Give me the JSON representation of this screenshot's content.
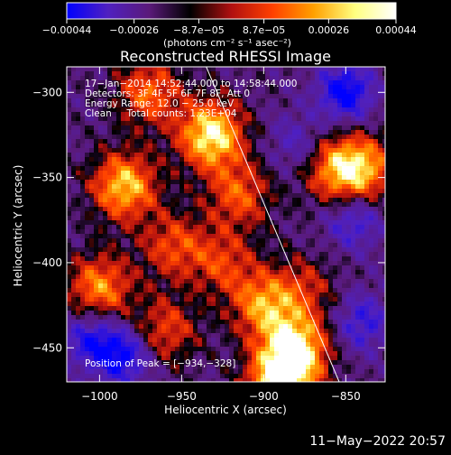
{
  "chart_data": {
    "type": "heatmap",
    "title": "Reconstructed RHESSI Image",
    "xlabel": "Heliocentric X (arcsec)",
    "ylabel": "Heliocentric Y (arcsec)",
    "xlim": [
      -1020,
      -826
    ],
    "ylim": [
      -470,
      -285
    ],
    "x_ticks": [
      -1000,
      -950,
      -900,
      -850
    ],
    "x_tick_labels": [
      "−1000",
      "−950",
      "−900",
      "−850"
    ],
    "y_ticks": [
      -300,
      -350,
      -400,
      -450
    ],
    "y_tick_labels": [
      "−300",
      "−350",
      "−400",
      "−450"
    ],
    "colorbar": {
      "range": [
        -0.00044,
        0.00044
      ],
      "ticks": [
        -0.00044,
        -0.00026,
        -8.7e-05,
        8.7e-05,
        0.00026,
        0.00044
      ],
      "tick_labels": [
        "−0.00044",
        "−0.00026",
        "−8.7e−05",
        "8.7e−05",
        "0.00026",
        "0.00044"
      ],
      "unit_text": "(photons cm⁻² s⁻¹ asec⁻²)",
      "colormap": [
        "#0000ff",
        "#5020c0",
        "#5a1a7a",
        "#000000",
        "#b01010",
        "#ff4000",
        "#ffa000",
        "#ffff80",
        "#ffffff"
      ]
    },
    "annotations": [
      "17−Jan−2014 14:52:44.000 to 14:58:44.000",
      "Detectors: 3F 4F 5F 6F 7F 8F, Att 0",
      "Energy Range: 12.0 − 25.0 keV",
      "Clean     Total counts: 1.23E+04"
    ],
    "peak_label": "Position of Peak = [−934,−328]",
    "limb_line": [
      [
        -935,
        -285
      ],
      [
        -854,
        -470
      ]
    ],
    "bright_sources": [
      {
        "x": -932,
        "y": -325,
        "level": 1.0
      },
      {
        "x": -915,
        "y": -360,
        "level": 0.55
      },
      {
        "x": -985,
        "y": -355,
        "level": 0.85
      },
      {
        "x": -970,
        "y": -300,
        "level": 0.6
      },
      {
        "x": -955,
        "y": -390,
        "level": 0.5
      },
      {
        "x": -900,
        "y": -425,
        "level": 0.7
      },
      {
        "x": -880,
        "y": -450,
        "level": 0.9
      },
      {
        "x": -890,
        "y": -470,
        "level": 1.0
      },
      {
        "x": -855,
        "y": -345,
        "level": 0.7
      },
      {
        "x": -838,
        "y": -345,
        "level": 0.6
      },
      {
        "x": -1000,
        "y": -415,
        "level": 0.7
      },
      {
        "x": -960,
        "y": -440,
        "level": 0.5
      },
      {
        "x": -925,
        "y": -400,
        "level": 0.45
      },
      {
        "x": -875,
        "y": -415,
        "level": 0.35
      }
    ],
    "dark_regions": [
      {
        "x": -850,
        "y": -300,
        "level": 0.9
      },
      {
        "x": -1005,
        "y": -445,
        "level": 0.7
      },
      {
        "x": -985,
        "y": -455,
        "level": 0.8
      },
      {
        "x": -845,
        "y": -375,
        "level": 0.6
      },
      {
        "x": -840,
        "y": -435,
        "level": 0.6
      },
      {
        "x": -880,
        "y": -330,
        "level": 0.4
      }
    ]
  },
  "footer": {
    "timestamp": "11−May−2022 20:57"
  }
}
